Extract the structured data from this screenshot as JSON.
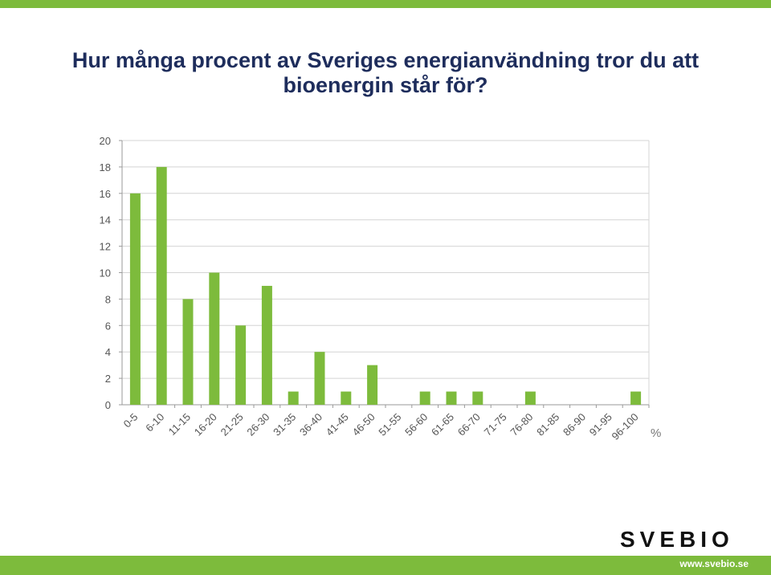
{
  "page": {
    "title_line1": "Hur många procent av Sveriges energianvändning tror du att",
    "title_line2": "bioenergin står för?",
    "logo_text": "SVEBIO",
    "url": "www.svebio.se",
    "accent_color": "#7dbb3c",
    "title_color": "#1e2d5c"
  },
  "chart_data": {
    "type": "bar",
    "title": "",
    "xlabel": "%",
    "ylabel": "",
    "categories": [
      "0-5",
      "6-10",
      "11-15",
      "16-20",
      "21-25",
      "26-30",
      "31-35",
      "36-40",
      "41-45",
      "46-50",
      "51-55",
      "56-60",
      "61-65",
      "66-70",
      "71-75",
      "76-80",
      "81-85",
      "86-90",
      "91-95",
      "96-100"
    ],
    "values": [
      16,
      18,
      8,
      10,
      6,
      9,
      1,
      4,
      1,
      3,
      0,
      1,
      1,
      1,
      0,
      1,
      0,
      0,
      0,
      1
    ],
    "ylim": [
      0,
      20
    ],
    "yticks": [
      0,
      2,
      4,
      6,
      8,
      10,
      12,
      14,
      16,
      18,
      20
    ],
    "grid": true,
    "bar_color": "#7dbb3c"
  }
}
